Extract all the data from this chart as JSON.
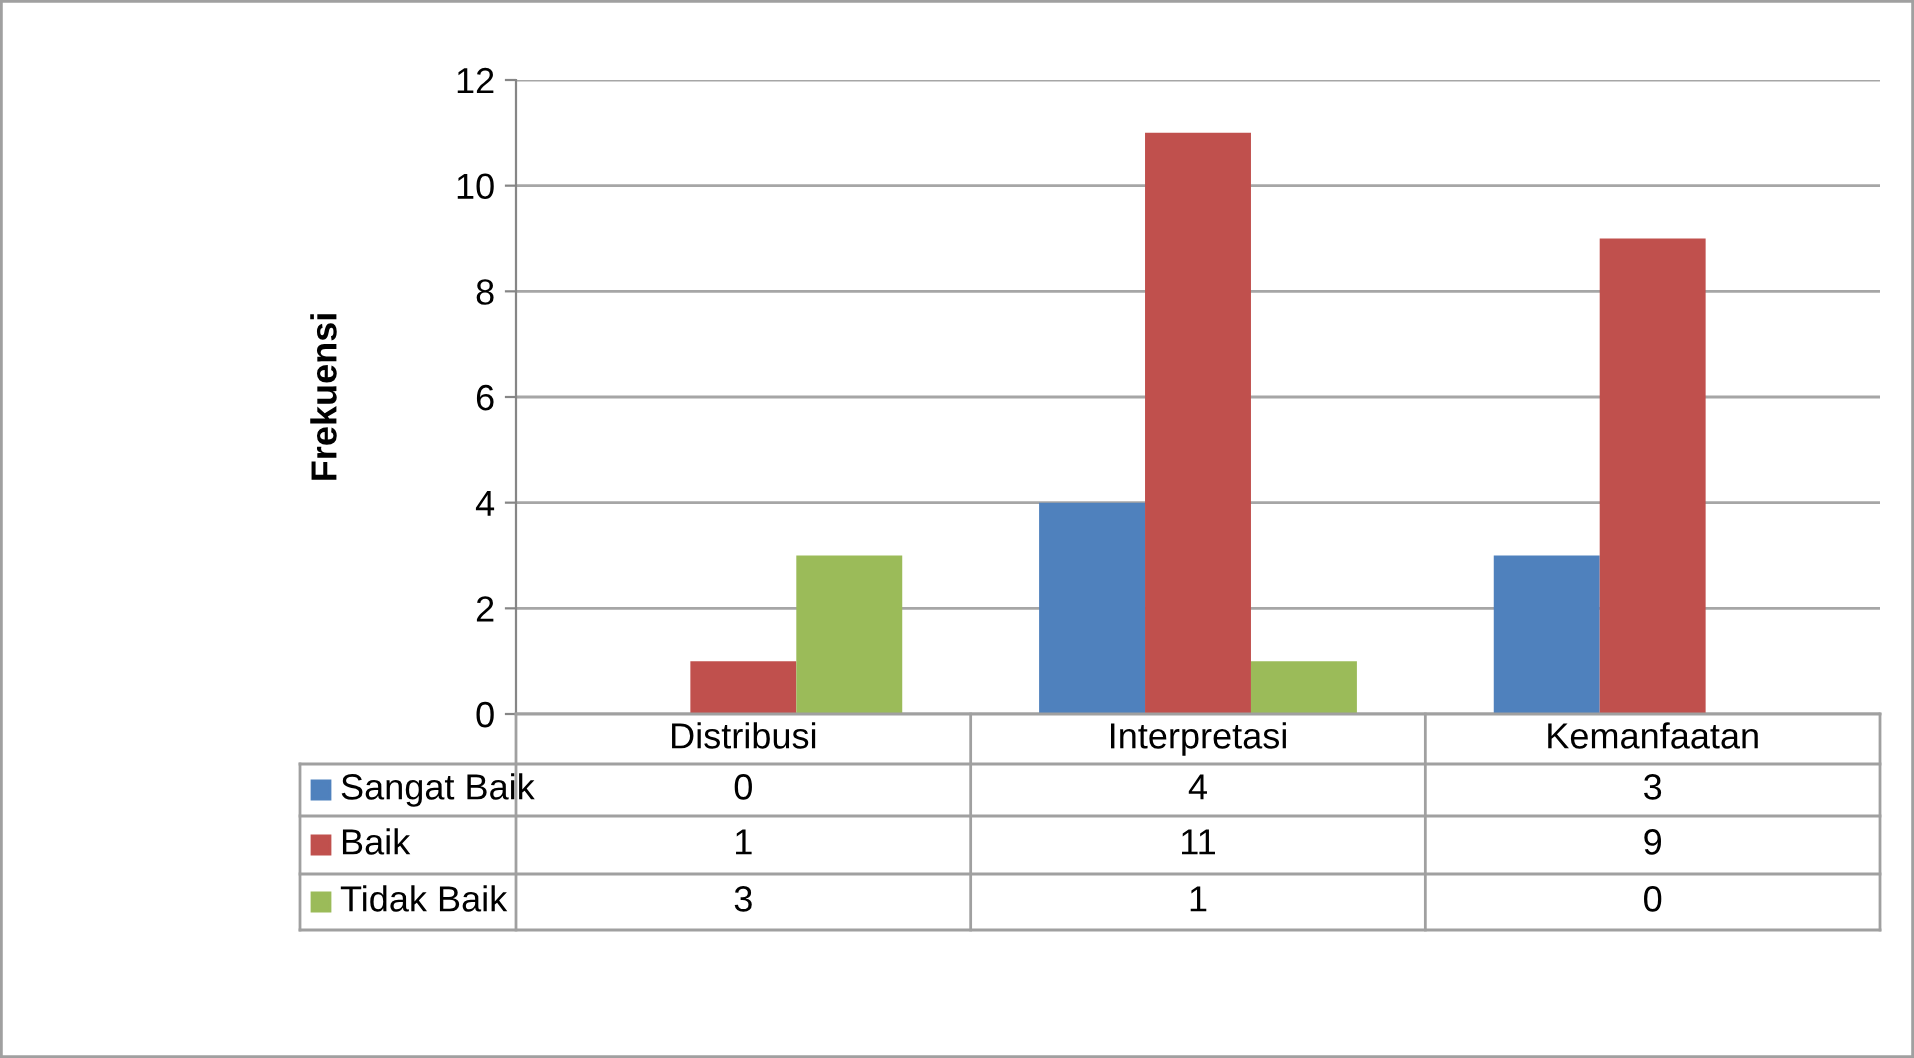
{
  "chart_data": {
    "type": "bar",
    "ylabel": "Frekuensi",
    "categories": [
      "Distribusi",
      "Interpretasi",
      "Kemanfaatan"
    ],
    "series": [
      {
        "name": "Sangat Baik",
        "color": "#4f81bd",
        "values": [
          0,
          4,
          3
        ]
      },
      {
        "name": "Baik",
        "color": "#c0504d",
        "values": [
          1,
          11,
          9
        ]
      },
      {
        "name": "Tidak Baik",
        "color": "#9bbb59",
        "values": [
          3,
          1,
          0
        ]
      }
    ],
    "ylim": [
      0,
      12
    ],
    "yticks": [
      0,
      2,
      4,
      6,
      8,
      10,
      12
    ],
    "grid": "y",
    "data_labels": true,
    "legend": "bottom"
  }
}
